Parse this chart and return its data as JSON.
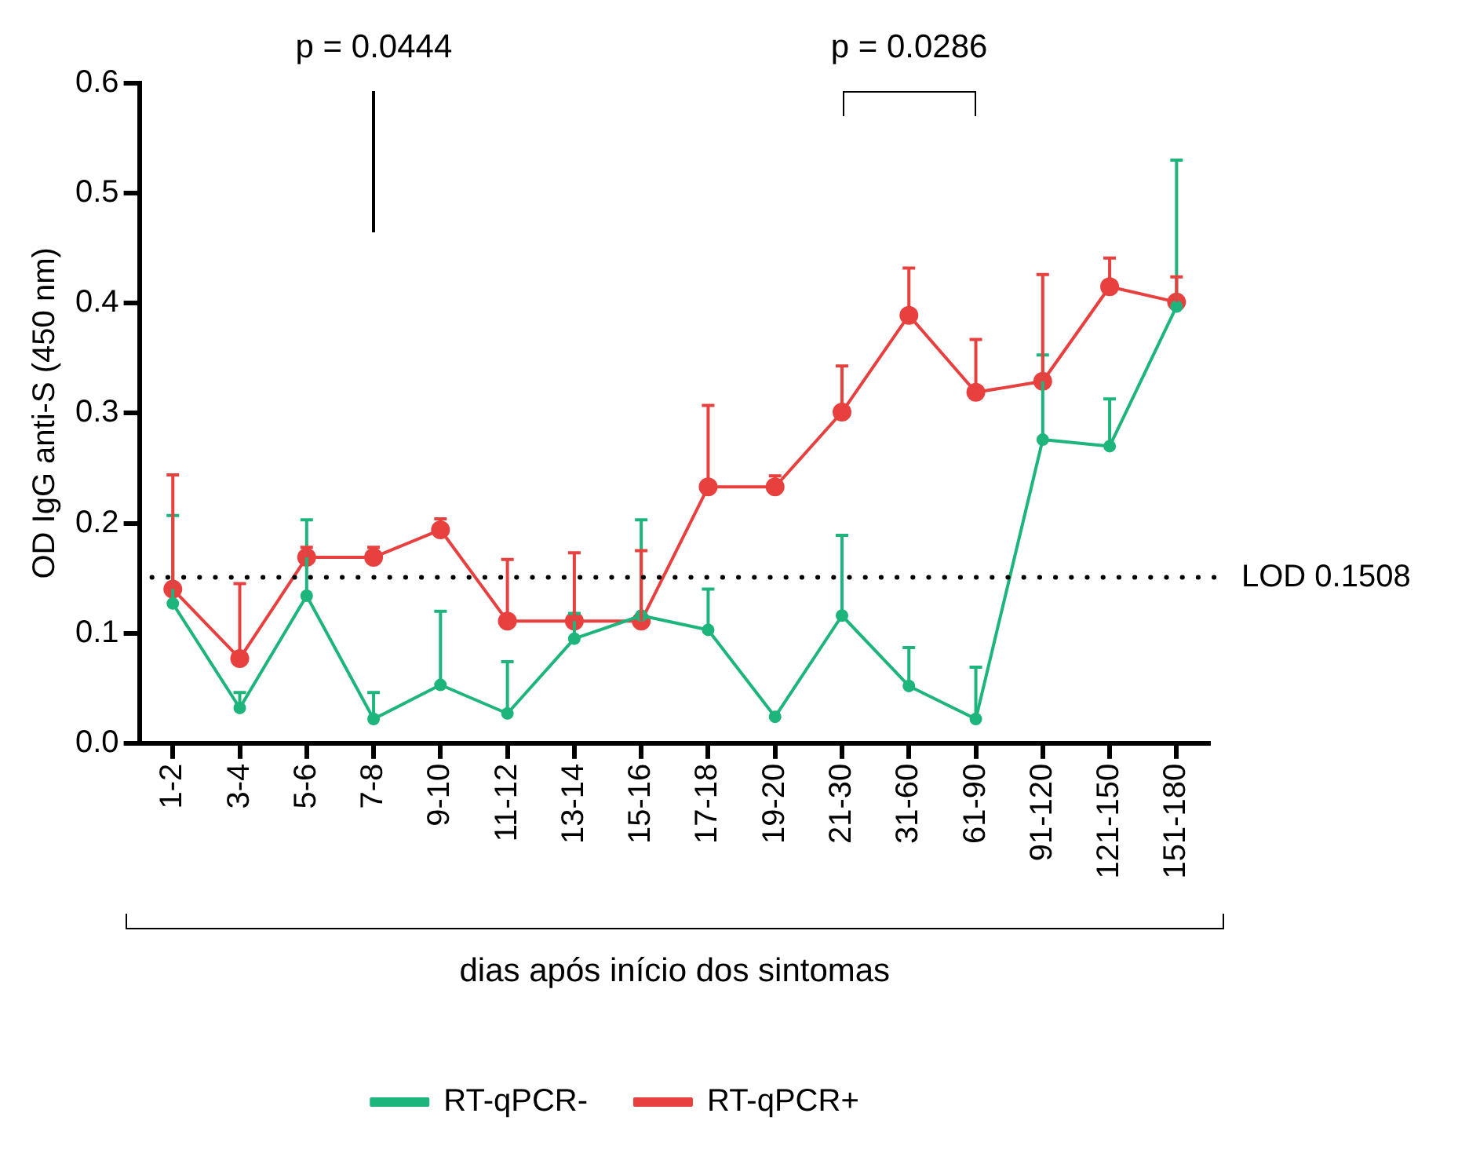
{
  "chart_data": {
    "type": "line",
    "xlabel": "dias após início dos sintomas",
    "ylabel": "OD IgG anti-S (450 nm)",
    "categories": [
      "1-2",
      "3-4",
      "5-6",
      "7-8",
      "9-10",
      "11-12",
      "13-14",
      "15-16",
      "17-18",
      "19-20",
      "21-30",
      "31-60",
      "61-90",
      "91-120",
      "121-150",
      "151-180"
    ],
    "series": [
      {
        "name": "RT-qPCR-",
        "color": "#1db57c",
        "values": [
          0.127,
          0.032,
          0.134,
          0.022,
          0.053,
          0.027,
          0.095,
          0.116,
          0.103,
          0.024,
          0.116,
          0.052,
          0.022,
          0.276,
          0.27,
          0.397
        ],
        "errors": [
          [
            0.127,
            0.207
          ],
          [
            0.032,
            0.046
          ],
          [
            0.134,
            0.203
          ],
          [
            0.022,
            0.046
          ],
          [
            0.053,
            0.12
          ],
          [
            0.027,
            0.074
          ],
          [
            0.095,
            0.118
          ],
          [
            0.116,
            0.203
          ],
          [
            0.103,
            0.14
          ],
          null,
          [
            0.116,
            0.189
          ],
          [
            0.052,
            0.087
          ],
          [
            0.022,
            0.069
          ],
          [
            0.276,
            0.353
          ],
          [
            0.27,
            0.313
          ],
          [
            0.397,
            0.53
          ]
        ]
      },
      {
        "name": "RT-qPCR+",
        "color": "#e8403f",
        "values": [
          0.14,
          0.077,
          0.169,
          0.169,
          0.194,
          0.111,
          0.111,
          0.111,
          0.233,
          0.233,
          0.301,
          0.389,
          0.319,
          0.329,
          0.415,
          0.401
        ],
        "errors": [
          [
            0.14,
            0.244
          ],
          [
            0.077,
            0.145
          ],
          [
            0.169,
            0.178
          ],
          [
            0.169,
            0.178
          ],
          [
            0.194,
            0.204
          ],
          [
            0.111,
            0.167
          ],
          [
            0.111,
            0.173
          ],
          [
            0.111,
            0.175
          ],
          [
            0.233,
            0.307
          ],
          [
            0.233,
            0.243
          ],
          [
            0.301,
            0.343
          ],
          [
            0.389,
            0.432
          ],
          [
            0.319,
            0.367
          ],
          [
            0.329,
            0.426
          ],
          [
            0.415,
            0.441
          ],
          [
            0.401,
            0.424
          ]
        ]
      }
    ],
    "ylim": [
      0,
      0.6
    ],
    "yticks": [
      {
        "value": 0,
        "label": "0.0"
      },
      {
        "value": 0.1,
        "label": "0.1"
      },
      {
        "value": 0.2,
        "label": "0.2"
      },
      {
        "value": 0.3,
        "label": "0.3"
      },
      {
        "value": 0.4,
        "label": "0.4"
      },
      {
        "value": 0.5,
        "label": "0.5"
      },
      {
        "value": 0.6,
        "label": "0.6"
      }
    ],
    "ref_lines": [
      {
        "axis": "y",
        "value": 0.1508,
        "label": "LOD 0.1508",
        "color": "#000000",
        "line_style": "dotted"
      }
    ],
    "annotations": [
      "p = 0.0444",
      "p = 0.0286"
    ],
    "grid": false,
    "legend": "bottom",
    "marker": "circle",
    "line_style": "solid"
  }
}
